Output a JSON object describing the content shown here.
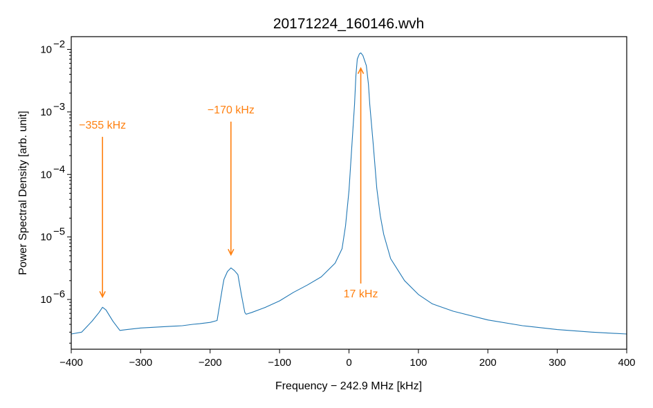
{
  "chart_data": {
    "type": "line",
    "title": "20171224_160146.wvh",
    "xlabel": "Frequency − 242.9 MHz [kHz]",
    "ylabel": "Power Spectral Density [arb. unit]",
    "xlim": [
      -400,
      400
    ],
    "ylim": [
      1.6e-07,
      0.016
    ],
    "yscale": "log",
    "x_ticks": [
      -400,
      -300,
      -200,
      -100,
      0,
      100,
      200,
      300,
      400
    ],
    "x_tick_labels": [
      "−400",
      "−300",
      "−200",
      "−100",
      "0",
      "100",
      "200",
      "300",
      "400"
    ],
    "y_ticks": [
      1e-06,
      1e-05,
      0.0001,
      0.001,
      0.01
    ],
    "y_tick_labels": [
      {
        "base": "10",
        "exp": "−6"
      },
      {
        "base": "10",
        "exp": "−5"
      },
      {
        "base": "10",
        "exp": "−4"
      },
      {
        "base": "10",
        "exp": "−3"
      },
      {
        "base": "10",
        "exp": "−2"
      }
    ],
    "grid": false,
    "series": [
      {
        "color": "#1f77b4",
        "x": [
          -400,
          -385,
          -370,
          -360,
          -355,
          -350,
          -340,
          -330,
          -320,
          -300,
          -280,
          -260,
          -240,
          -225,
          -215,
          -200,
          -190,
          -182,
          -180,
          -175,
          -170,
          -165,
          -160,
          -155,
          -150,
          -148,
          -140,
          -120,
          -100,
          -80,
          -60,
          -40,
          -20,
          -10,
          -5,
          0,
          5,
          8,
          10,
          12,
          15,
          17,
          20,
          25,
          28,
          30,
          35,
          40,
          45,
          50,
          60,
          80,
          100,
          120,
          150,
          200,
          250,
          300,
          350,
          400
        ],
        "y": [
          2.8e-07,
          3e-07,
          4.5e-07,
          6.2e-07,
          7.5e-07,
          6.8e-07,
          4.5e-07,
          3.2e-07,
          3.3e-07,
          3.5e-07,
          3.6e-07,
          3.7e-07,
          3.8e-07,
          4e-07,
          4.1e-07,
          4.3e-07,
          4.6e-07,
          1.6e-06,
          2.1e-06,
          2.8e-06,
          3.2e-06,
          2.9e-06,
          2.5e-06,
          1.2e-06,
          6.2e-07,
          5.8e-07,
          6.2e-07,
          7.5e-07,
          9.5e-07,
          1.3e-06,
          1.7e-06,
          2.3e-06,
          3.8e-06,
          6.5e-06,
          1.5e-05,
          5.5e-05,
          0.0004,
          0.0013,
          0.0038,
          0.007,
          0.0085,
          0.0088,
          0.008,
          0.0055,
          0.0028,
          0.0013,
          0.0003,
          6e-05,
          2.2e-05,
          1.1e-05,
          4.5e-06,
          2e-06,
          1.2e-06,
          8.5e-07,
          6.5e-07,
          4.7e-07,
          3.8e-07,
          3.3e-07,
          3e-07,
          2.8e-07
        ]
      }
    ],
    "annotations": [
      {
        "label": "−355 kHz",
        "target": [
          -355,
          1.1e-06
        ],
        "tail": [
          -355,
          0.0004
        ]
      },
      {
        "label": "−170 kHz",
        "target": [
          -170,
          5.2e-06
        ],
        "tail": [
          -170,
          0.0007
        ]
      },
      {
        "label": "17 kHz",
        "target": [
          17,
          0.005
        ],
        "tail": [
          17,
          1.8e-06
        ]
      }
    ],
    "annotation_color": "#ff7f0e"
  }
}
